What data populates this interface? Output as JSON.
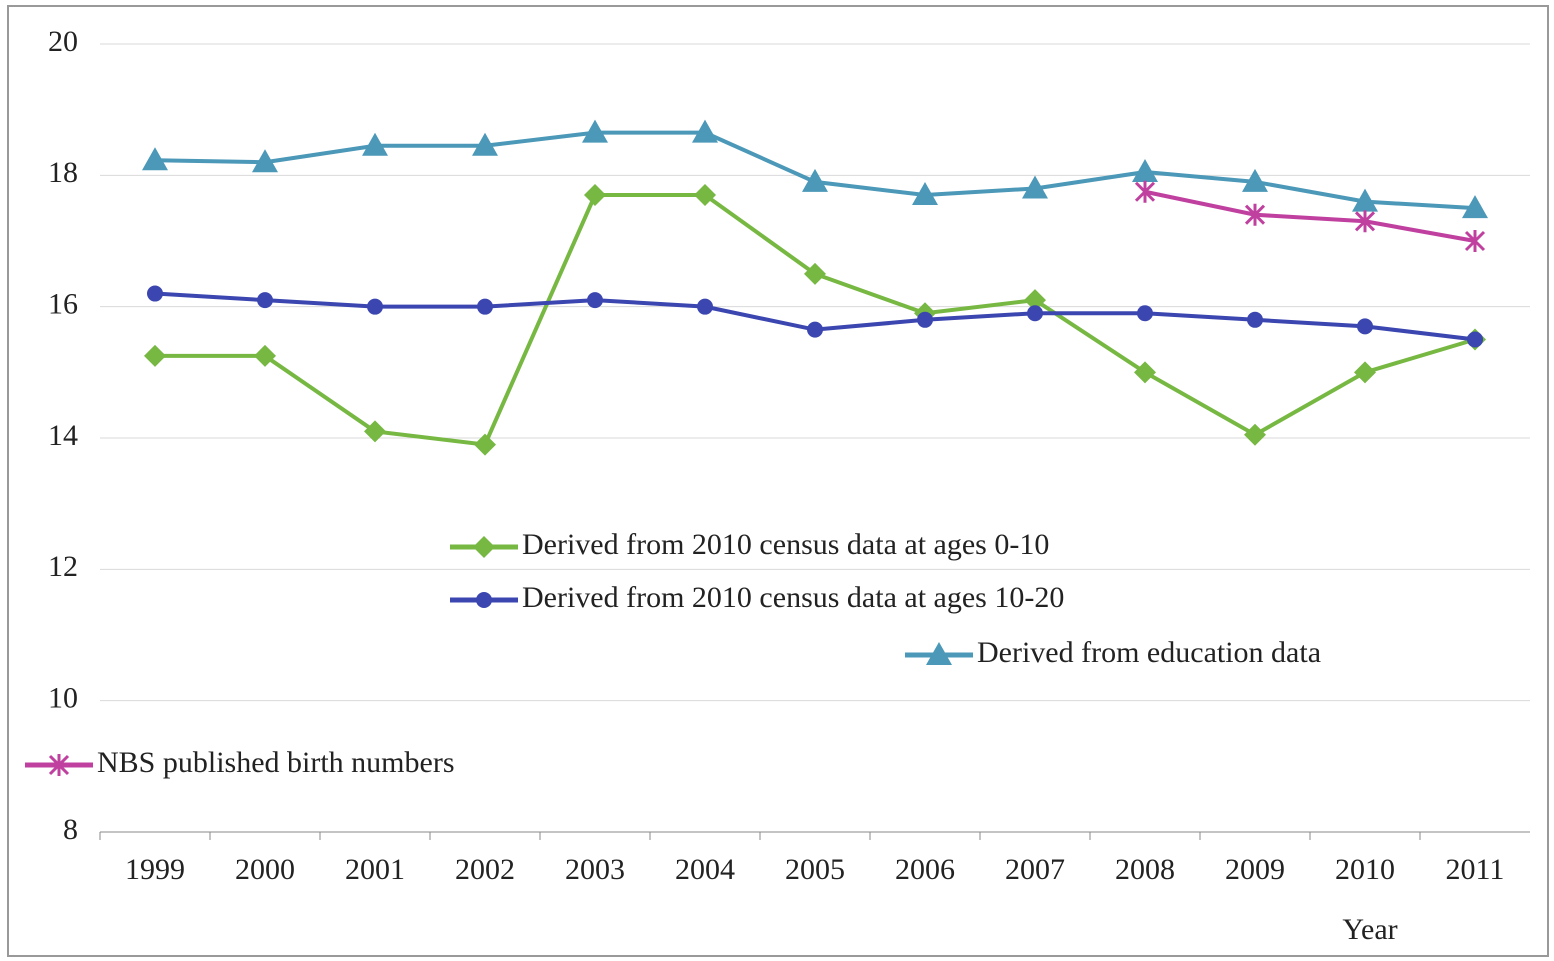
{
  "chart_data": {
    "type": "line",
    "x_label": "Year",
    "categories": [
      "1999",
      "2000",
      "2001",
      "2002",
      "2003",
      "2004",
      "2005",
      "2006",
      "2007",
      "2008",
      "2009",
      "2010",
      "2011"
    ],
    "ylim": [
      8,
      20
    ],
    "yticks": [
      8,
      10,
      12,
      14,
      16,
      18,
      20
    ],
    "grid": true,
    "series": [
      {
        "name": "Derived from 2010 census data at ages 0-10",
        "color": "#77b843",
        "marker": "diamond",
        "values": [
          15.25,
          15.25,
          14.1,
          13.9,
          17.7,
          17.7,
          16.5,
          15.9,
          16.1,
          15.0,
          14.05,
          15.0,
          15.5
        ]
      },
      {
        "name": "Derived from 2010 census data at ages 10-20",
        "color": "#3b46b0",
        "marker": "circle",
        "values": [
          16.2,
          16.1,
          16.0,
          16.0,
          16.1,
          16.0,
          15.65,
          15.8,
          15.9,
          15.9,
          15.8,
          15.7,
          15.5
        ]
      },
      {
        "name": "Derived from education data",
        "color": "#4b98b8",
        "marker": "triangle",
        "values": [
          18.23,
          18.2,
          18.45,
          18.45,
          18.65,
          18.65,
          17.9,
          17.7,
          17.8,
          18.05,
          17.9,
          17.6,
          17.5
        ]
      },
      {
        "name": "NBS published birth numbers",
        "color": "#c040a0",
        "marker": "star",
        "values": [
          null,
          null,
          null,
          null,
          null,
          null,
          null,
          null,
          null,
          17.75,
          17.4,
          17.3,
          17.0
        ]
      }
    ]
  }
}
